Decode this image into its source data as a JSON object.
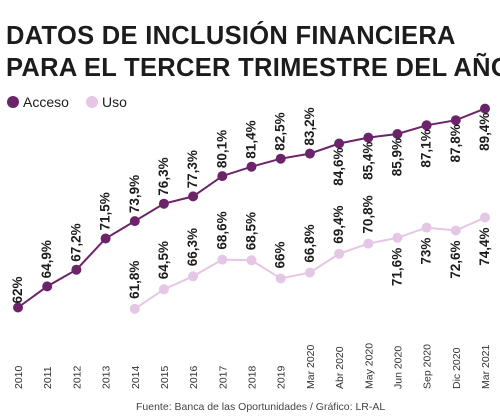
{
  "chart_data": {
    "type": "line",
    "title": "DATOS DE INCLUSIÓN FINANCIERA",
    "subtitle": "PARA EL TERCER TRIMESTRE DEL AÑO",
    "categories": [
      "2010",
      "2011",
      "2012",
      "2013",
      "2014",
      "2015",
      "2016",
      "2017",
      "2018",
      "2019",
      "Mar 2020",
      "Abr 2020",
      "May 2020",
      "Jun 2020",
      "Sep 2020",
      "Dic 2020",
      "Mar 2021"
    ],
    "series": [
      {
        "name": "Acceso",
        "color": "#6b2469",
        "values": [
          62,
          64.9,
          67.2,
          71.5,
          73.9,
          76.3,
          77.3,
          80.1,
          81.4,
          82.5,
          83.2,
          84.6,
          85.4,
          85.9,
          87.1,
          87.8,
          89.4
        ],
        "labels": [
          "62%",
          "64,9%",
          "67,2%",
          "71,5%",
          "73,9%",
          "76,3%",
          "77,3%",
          "80,1%",
          "81,4%",
          "82,5%",
          "83,2%",
          "84,6%",
          "85,4%",
          "85,9%",
          "87,1%",
          "87,8%",
          "89,4%"
        ]
      },
      {
        "name": "Uso",
        "color": "#e5c6e5",
        "values": [
          null,
          null,
          null,
          null,
          61.8,
          64.5,
          66.3,
          68.6,
          68.5,
          66,
          66.8,
          69.4,
          70.8,
          71.6,
          73,
          72.6,
          74.4
        ],
        "labels": [
          null,
          null,
          null,
          null,
          "61,8%",
          "64,5%",
          "66,3%",
          "68,6%",
          "68,5%",
          "66%",
          "66,8%",
          "69,4%",
          "70,8%",
          "71,6%",
          "73%",
          "72,6%",
          "74,4%"
        ]
      }
    ],
    "ylim": [
      60,
      91
    ],
    "grid": false,
    "legend": "top-left",
    "source": "Fuente: Banca de las Oportunidades / Gráfico: LR-AL"
  }
}
